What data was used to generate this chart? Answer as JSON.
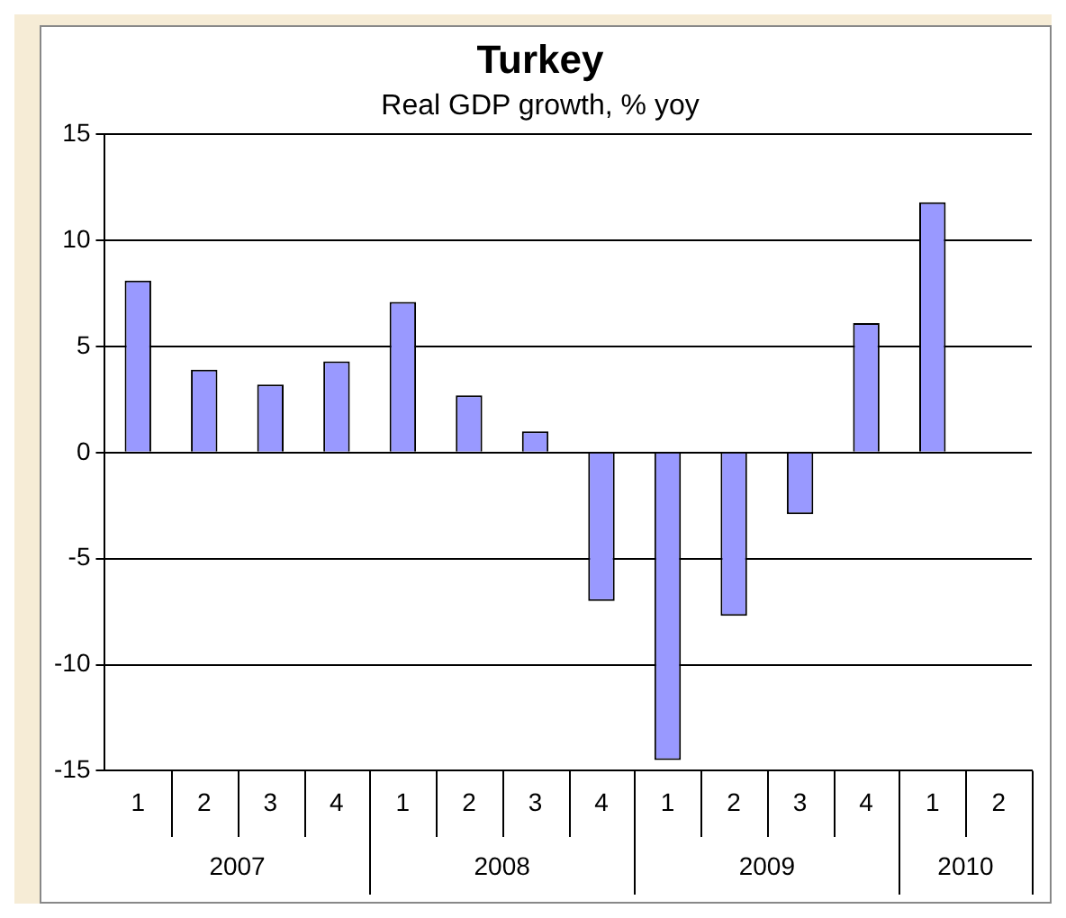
{
  "chart_data": {
    "type": "bar",
    "title": "Turkey",
    "subtitle": "Real GDP growth, % yoy",
    "categories": [
      "1",
      "2",
      "3",
      "4",
      "1",
      "2",
      "3",
      "4",
      "1",
      "2",
      "3",
      "4",
      "1",
      "2"
    ],
    "values": [
      8.1,
      3.9,
      3.2,
      4.3,
      7.1,
      2.7,
      1.0,
      -7.0,
      -14.5,
      -7.7,
      -2.9,
      6.1,
      11.8,
      null
    ],
    "color": "#9999ff",
    "annotations": [
      "2007",
      "2008",
      "2009",
      "2010"
    ],
    "ylim": [
      -15,
      15
    ],
    "yticks": [
      -15,
      -10,
      -5,
      0,
      5,
      10,
      15
    ],
    "grid": "y",
    "legend": false
  }
}
